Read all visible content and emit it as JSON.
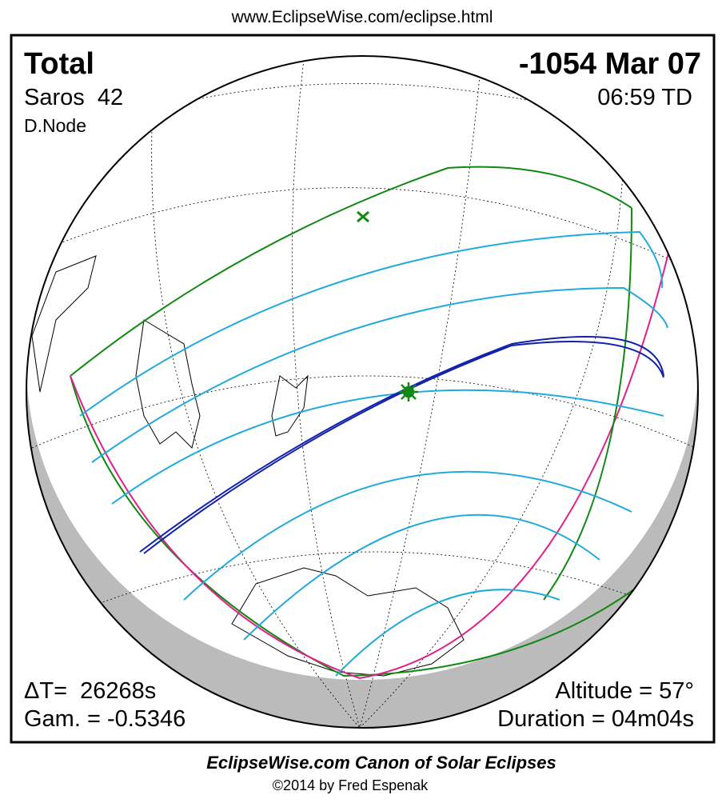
{
  "header": {
    "url": "www.EclipseWise.com/eclipse.html"
  },
  "eclipse": {
    "type": "Total",
    "date": "-1054 Mar 07",
    "saros": "Saros  42",
    "time": "06:59 TD",
    "node": "D.Node",
    "delta_t": "ΔT=  26268s",
    "gamma": "Gam. = -0.5346",
    "altitude": "Altitude = 57°",
    "duration": "Duration = 04m04s"
  },
  "footer": {
    "title": "EclipseWise.com Canon of Solar Eclipses",
    "credit": "©2014 by Fred Espenak"
  }
}
